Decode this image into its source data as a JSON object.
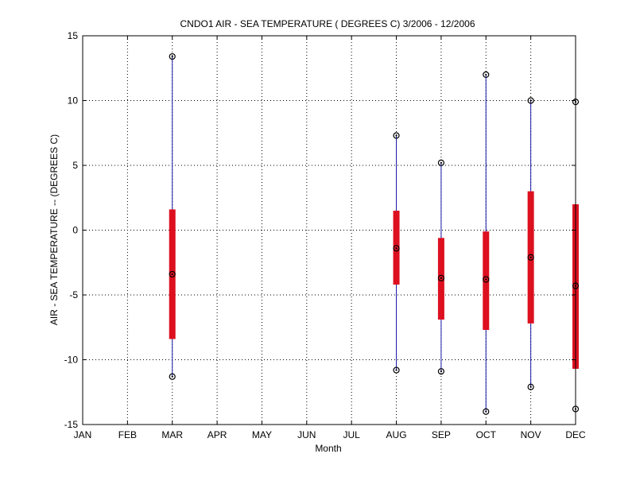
{
  "chart_data": {
    "type": "box",
    "title": "CNDO1  AIR - SEA TEMPERATURE ( DEGREES C) 3/2006 - 12/2006",
    "xlabel": "Month",
    "ylabel": "AIR - SEA TEMPERATURE -- (DEGREES C)",
    "categories": [
      "JAN",
      "FEB",
      "MAR",
      "APR",
      "MAY",
      "JUN",
      "JUL",
      "AUG",
      "SEP",
      "OCT",
      "NOV",
      "DEC"
    ],
    "ylim": [
      -15,
      15
    ],
    "yticks": [
      15,
      10,
      5,
      0,
      -5,
      -10,
      -15
    ],
    "grid": true,
    "colors": {
      "whisker": "#1a1aa8",
      "box": "#dd1020",
      "marker": "#000000",
      "grid": "#000000"
    },
    "boxes": [
      {
        "month": "MAR",
        "max": 13.4,
        "q3": 1.6,
        "median": -3.4,
        "q1": -8.4,
        "min": -11.3
      },
      {
        "month": "AUG",
        "max": 7.3,
        "q3": 1.5,
        "median": -1.4,
        "q1": -4.2,
        "min": -10.8
      },
      {
        "month": "SEP",
        "max": 5.2,
        "q3": -0.6,
        "median": -3.7,
        "q1": -6.9,
        "min": -10.9
      },
      {
        "month": "OCT",
        "max": 12.0,
        "q3": -0.1,
        "median": -3.8,
        "q1": -7.7,
        "min": -14.0
      },
      {
        "month": "NOV",
        "max": 10.0,
        "q3": 3.0,
        "median": -2.1,
        "q1": -7.2,
        "min": -12.1
      },
      {
        "month": "DEC",
        "max": 9.9,
        "q3": 2.0,
        "median": -4.3,
        "q1": -10.7,
        "min": -13.8
      }
    ]
  }
}
